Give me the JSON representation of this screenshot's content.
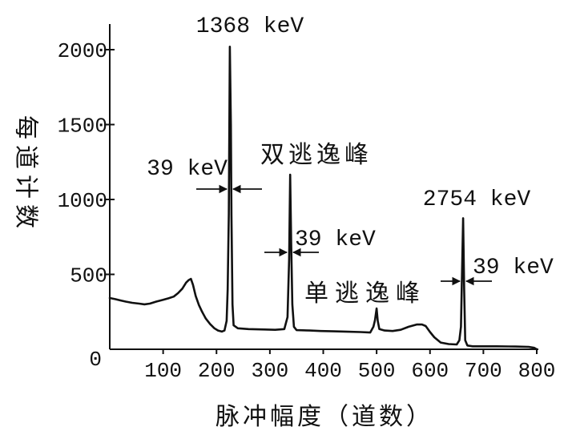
{
  "chart_data": {
    "type": "line",
    "xlabel": "脉冲幅度（道数）",
    "ylabel": "每道计数",
    "xlim": [
      0,
      800
    ],
    "ylim": [
      0,
      2000
    ],
    "x_ticks": [
      100,
      200,
      300,
      400,
      500,
      600,
      700,
      800
    ],
    "y_ticks": [
      0,
      500,
      1000,
      1500,
      2000
    ],
    "grid": false,
    "legend": "none",
    "series": [
      {
        "x": [
          0,
          10,
          20,
          30,
          42,
          55,
          65,
          75,
          87,
          100,
          110,
          120,
          128,
          136,
          143,
          148,
          152,
          156,
          161,
          167,
          173,
          180,
          188,
          196,
          203,
          210,
          215,
          219,
          221,
          223,
          225,
          227,
          228,
          230,
          232,
          240,
          260,
          290,
          310,
          327,
          333,
          336,
          338,
          340,
          342,
          345,
          350,
          375,
          395,
          420,
          440,
          470,
          488,
          494,
          497,
          500,
          502,
          505,
          515,
          530,
          545,
          560,
          575,
          585,
          592,
          600,
          608,
          620,
          635,
          650,
          655,
          658,
          660,
          662,
          664,
          666,
          670,
          680,
          700,
          725,
          760,
          785,
          795,
          800
        ],
        "y": [
          342,
          335,
          326,
          318,
          310,
          305,
          300,
          305,
          318,
          330,
          340,
          352,
          375,
          405,
          445,
          462,
          470,
          430,
          355,
          295,
          250,
          205,
          168,
          140,
          125,
          118,
          125,
          190,
          400,
          900,
          2020,
          1500,
          900,
          300,
          160,
          140,
          135,
          132,
          130,
          135,
          215,
          600,
          1165,
          700,
          300,
          150,
          128,
          125,
          122,
          120,
          118,
          115,
          112,
          150,
          195,
          272,
          190,
          135,
          125,
          122,
          130,
          150,
          165,
          165,
          155,
          115,
          80,
          45,
          35,
          32,
          60,
          150,
          500,
          875,
          400,
          60,
          25,
          20,
          20,
          20,
          18,
          16,
          10,
          0
        ]
      }
    ],
    "annotations": [
      "1368 keV",
      "39 keV",
      "双逃逸峰",
      "39 keV",
      "单逃逸峰",
      "2754 keV",
      "39 keV"
    ]
  }
}
